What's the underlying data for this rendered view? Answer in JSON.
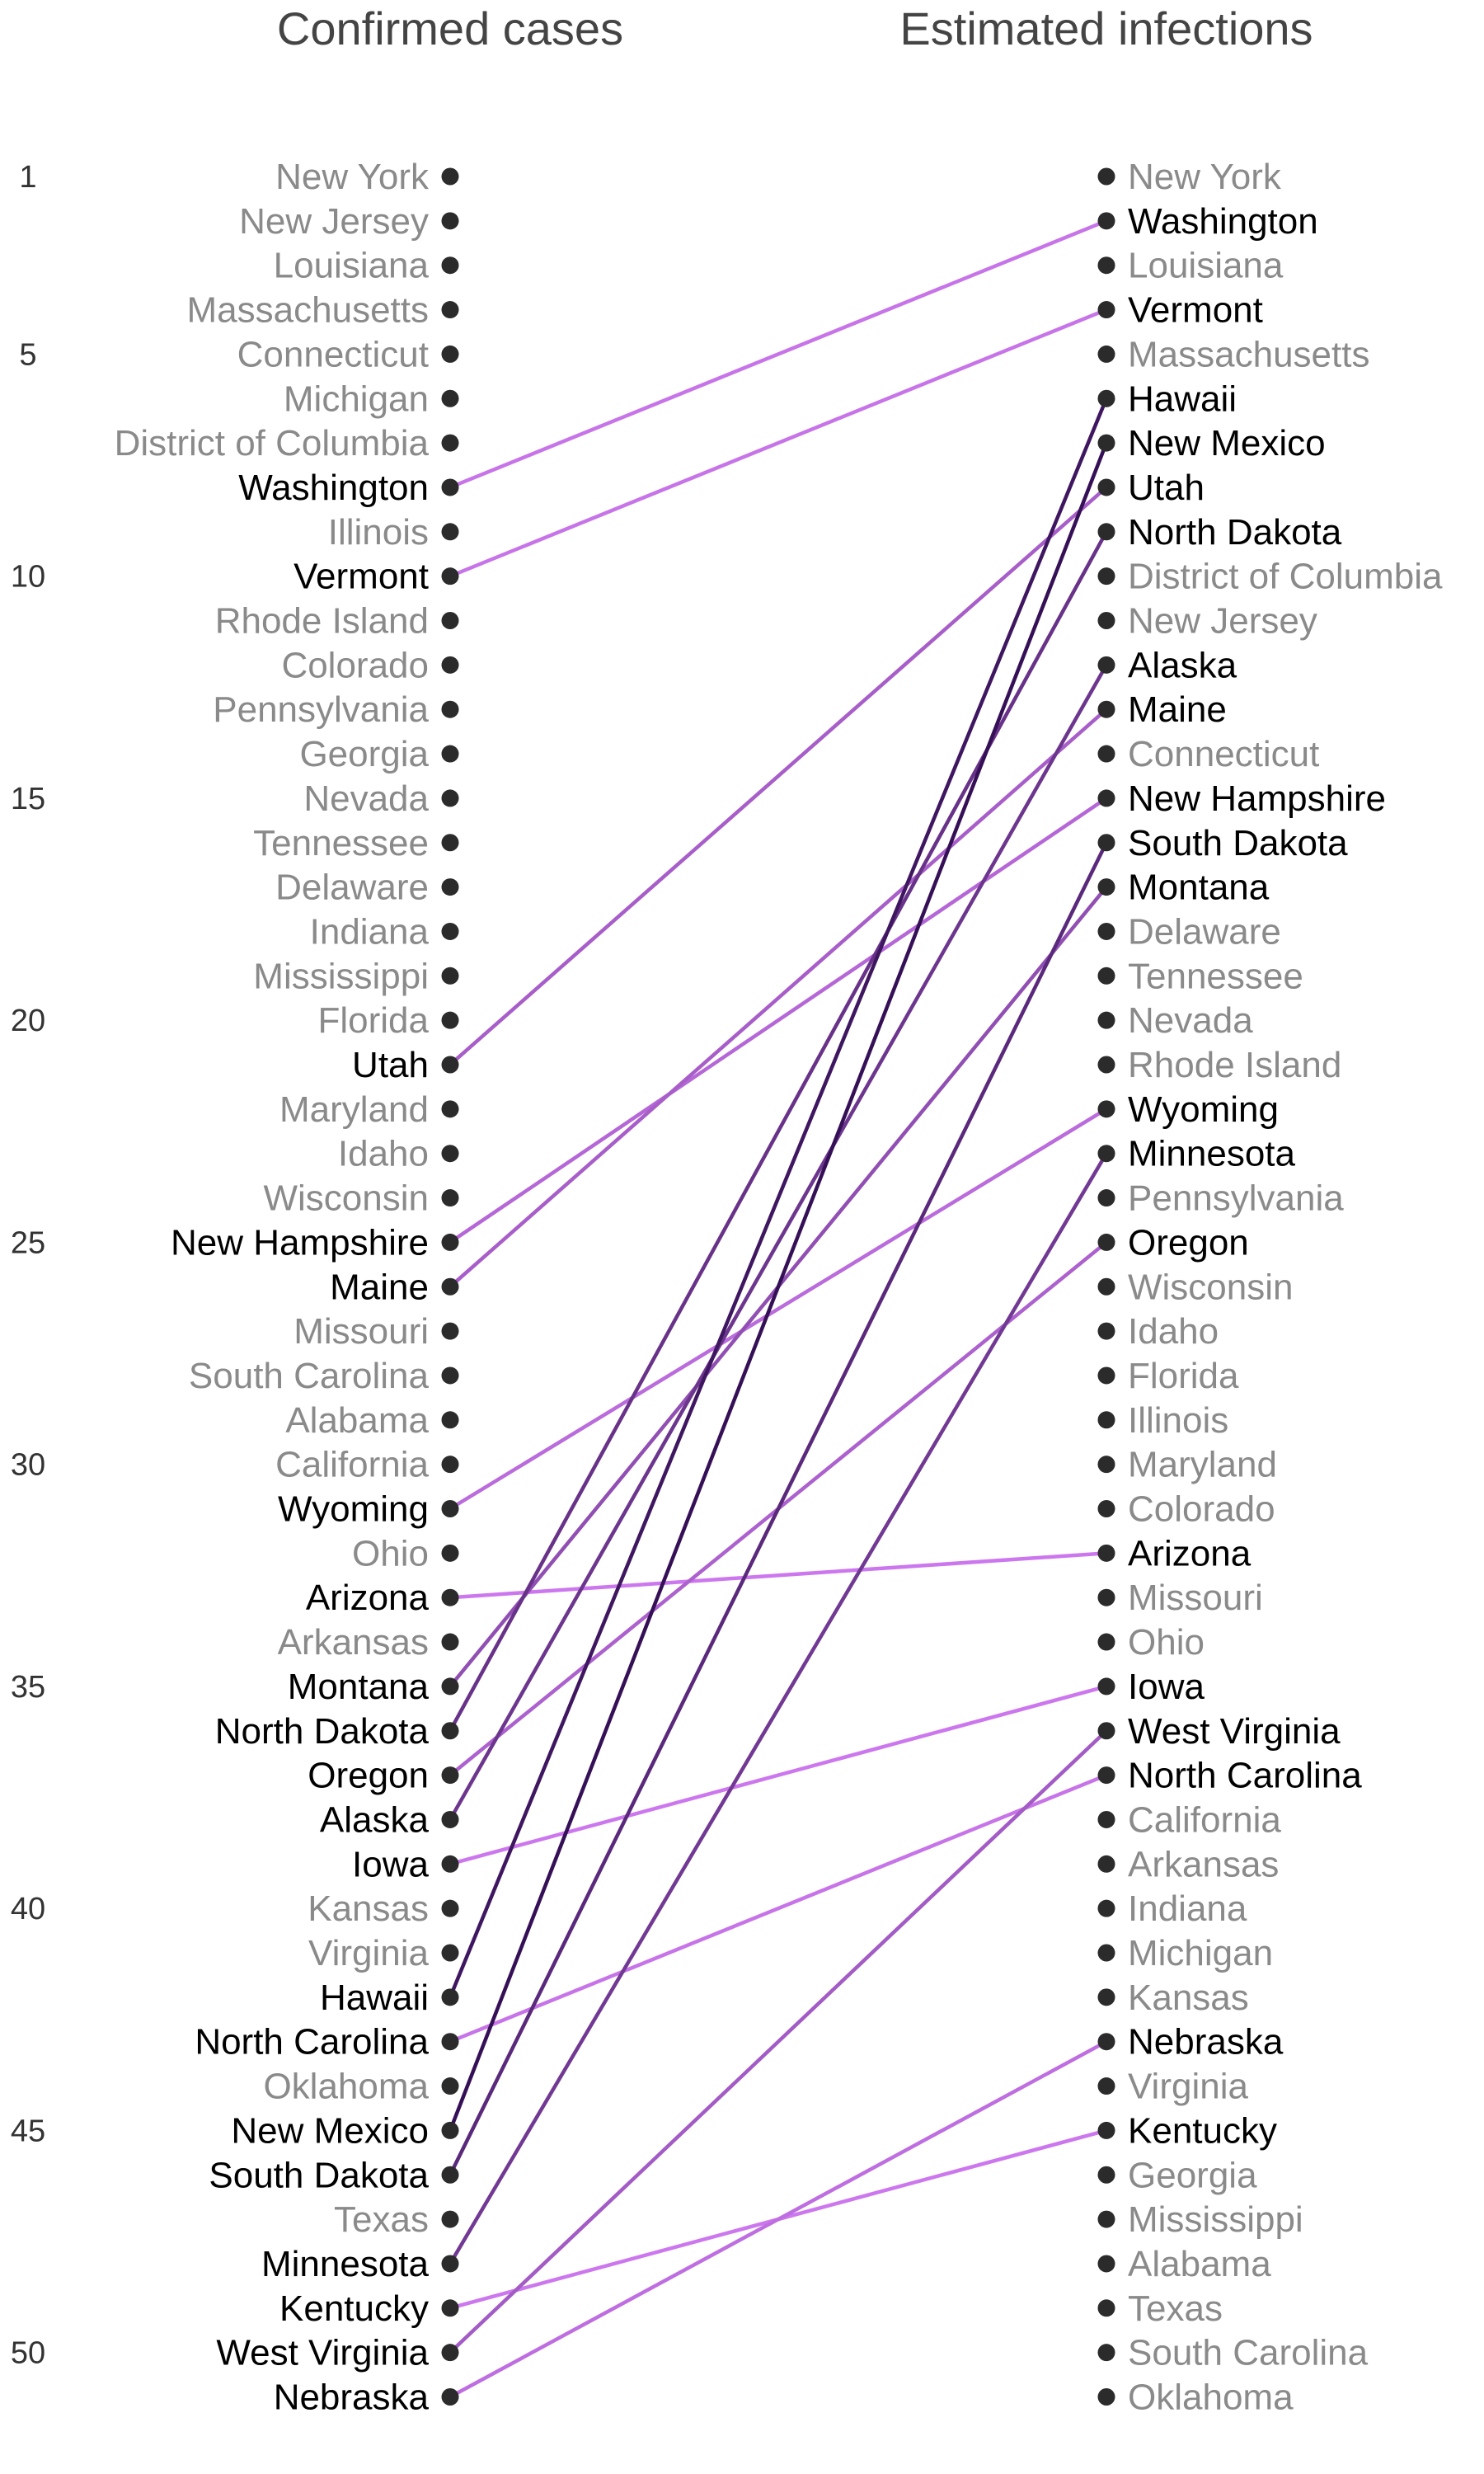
{
  "chart_data": {
    "type": "slope",
    "left_title": "Confirmed cases",
    "right_title": "Estimated infections",
    "rank_ticks": [
      1,
      5,
      10,
      15,
      20,
      25,
      30,
      35,
      40,
      45,
      50
    ],
    "left_order": [
      "New York",
      "New Jersey",
      "Louisiana",
      "Massachusetts",
      "Connecticut",
      "Michigan",
      "District of Columbia",
      "Washington",
      "Illinois",
      "Vermont",
      "Rhode Island",
      "Colorado",
      "Pennsylvania",
      "Georgia",
      "Nevada",
      "Tennessee",
      "Delaware",
      "Indiana",
      "Mississippi",
      "Florida",
      "Utah",
      "Maryland",
      "Idaho",
      "Wisconsin",
      "New Hampshire",
      "Maine",
      "Missouri",
      "South Carolina",
      "Alabama",
      "California",
      "Wyoming",
      "Ohio",
      "Arizona",
      "Arkansas",
      "Montana",
      "North Dakota",
      "Oregon",
      "Alaska",
      "Iowa",
      "Kansas",
      "Virginia",
      "Hawaii",
      "North Carolina",
      "Oklahoma",
      "New Mexico",
      "South Dakota",
      "Texas",
      "Minnesota",
      "Kentucky",
      "West Virginia",
      "Nebraska"
    ],
    "right_order": [
      "New York",
      "Washington",
      "Louisiana",
      "Vermont",
      "Massachusetts",
      "Hawaii",
      "New Mexico",
      "Utah",
      "North Dakota",
      "District of Columbia",
      "New Jersey",
      "Alaska",
      "Maine",
      "Connecticut",
      "New Hampshire",
      "South Dakota",
      "Montana",
      "Delaware",
      "Tennessee",
      "Nevada",
      "Rhode Island",
      "Wyoming",
      "Minnesota",
      "Pennsylvania",
      "Oregon",
      "Wisconsin",
      "Idaho",
      "Florida",
      "Illinois",
      "Maryland",
      "Colorado",
      "Arizona",
      "Missouri",
      "Ohio",
      "Iowa",
      "West Virginia",
      "North Carolina",
      "California",
      "Arkansas",
      "Indiana",
      "Michigan",
      "Kansas",
      "Nebraska",
      "Virginia",
      "Kentucky",
      "Georgia",
      "Mississippi",
      "Alabama",
      "Texas",
      "South Carolina",
      "Oklahoma"
    ],
    "highlighted": [
      "Washington",
      "Vermont",
      "Utah",
      "New Hampshire",
      "Maine",
      "Wyoming",
      "Arizona",
      "Montana",
      "North Dakota",
      "Oregon",
      "Alaska",
      "Iowa",
      "Hawaii",
      "North Carolina",
      "New Mexico",
      "South Dakota",
      "Minnesota",
      "Kentucky",
      "West Virginia",
      "Nebraska"
    ],
    "colors": {
      "dot": "#2b2b2b",
      "label_highlighted": "#000000",
      "label_other": "#8a8a8a",
      "line_small_change": "#cc77ee",
      "line_large_change": "#2d0a4e"
    },
    "grid": false,
    "legend": "none"
  }
}
